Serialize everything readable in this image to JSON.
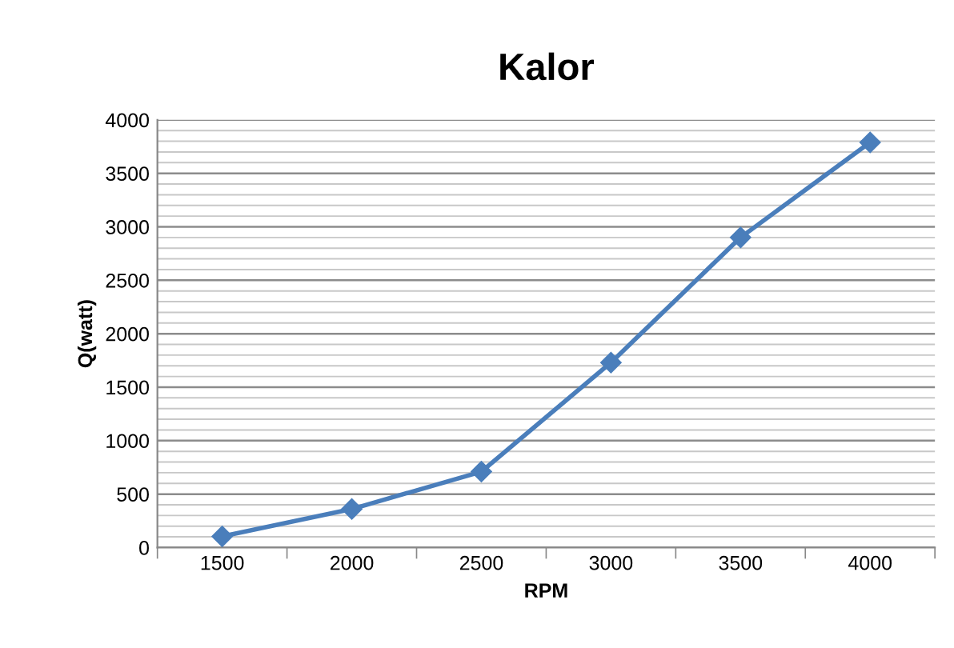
{
  "chart_data": {
    "type": "line",
    "title": "Kalor",
    "xlabel": "RPM",
    "ylabel": "Q(watt)",
    "categories": [
      "1500",
      "2000",
      "2500",
      "3000",
      "3500",
      "4000"
    ],
    "series": [
      {
        "color": "#4a7ebb",
        "values": [
          105,
          360,
          710,
          1730,
          2900,
          3790
        ]
      }
    ],
    "ylim": [
      0,
      4000
    ],
    "yticks": [
      0,
      500,
      1000,
      1500,
      2000,
      2500,
      3000,
      3500,
      4000
    ],
    "grid": "y",
    "marker": "diamond",
    "line_style": "solid",
    "legend": false
  }
}
